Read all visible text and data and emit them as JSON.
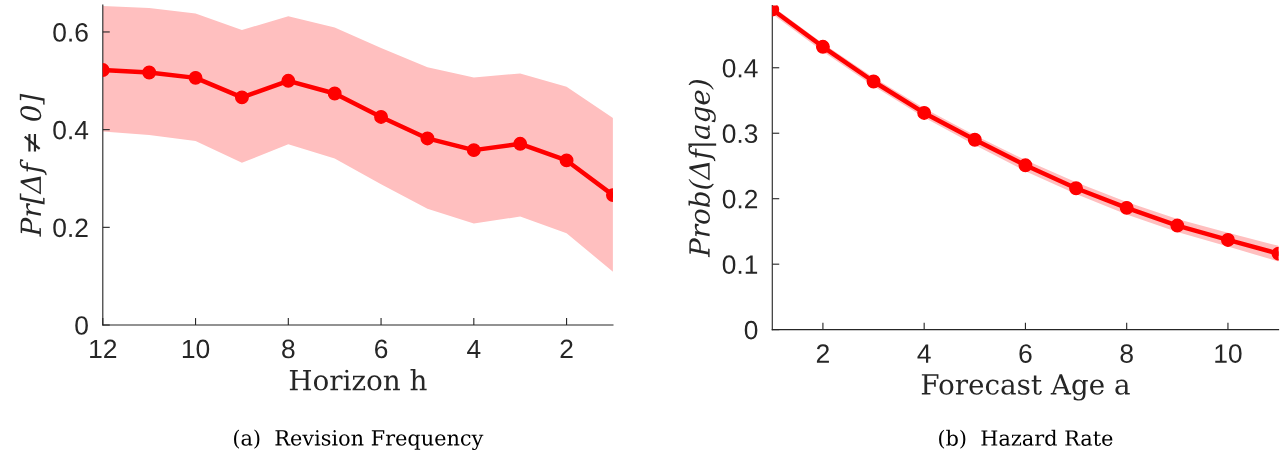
{
  "chart_data": [
    {
      "type": "line",
      "xlabel": "Horizon h",
      "ylabel": "Pr[Δf ≠ 0]",
      "annotations": [
        "(a)  Revision Frequency"
      ],
      "x": [
        12,
        11,
        10,
        9,
        8,
        7,
        6,
        5,
        4,
        3,
        2,
        1
      ],
      "series": [
        {
          "color": "#ff0000",
          "values": [
            0.522,
            0.517,
            0.506,
            0.466,
            0.5,
            0.474,
            0.426,
            0.382,
            0.358,
            0.371,
            0.337,
            0.266
          ],
          "upper": [
            0.653,
            0.649,
            0.638,
            0.604,
            0.632,
            0.609,
            0.567,
            0.528,
            0.507,
            0.515,
            0.488,
            0.424
          ],
          "lower": [
            0.396,
            0.389,
            0.377,
            0.332,
            0.37,
            0.341,
            0.288,
            0.238,
            0.208,
            0.222,
            0.188,
            0.109
          ]
        }
      ],
      "xlim": [
        12,
        1
      ],
      "xticks": [
        12,
        10,
        8,
        6,
        4,
        2
      ],
      "ylim": [
        0,
        0.655
      ],
      "yticks": [
        0,
        0.2,
        0.4,
        0.6
      ],
      "marker": "circle",
      "line_style": "solid",
      "grid": false,
      "legend": false
    },
    {
      "type": "line",
      "xlabel": "Forecast Age a",
      "ylabel": "Prob(Δf|age)",
      "annotations": [
        "(b)  Hazard Rate"
      ],
      "x": [
        1,
        2,
        3,
        4,
        5,
        6,
        7,
        8,
        9,
        10,
        11
      ],
      "series": [
        {
          "color": "#ff0000",
          "values": [
            0.489,
            0.432,
            0.379,
            0.331,
            0.29,
            0.251,
            0.216,
            0.186,
            0.159,
            0.137,
            0.116
          ],
          "upper": [
            0.494,
            0.437,
            0.385,
            0.338,
            0.297,
            0.259,
            0.225,
            0.195,
            0.169,
            0.148,
            0.128
          ],
          "lower": [
            0.482,
            0.425,
            0.372,
            0.324,
            0.282,
            0.242,
            0.207,
            0.176,
            0.149,
            0.127,
            0.104
          ]
        }
      ],
      "xlim": [
        1,
        11
      ],
      "xticks": [
        2,
        4,
        6,
        8,
        10
      ],
      "ylim": [
        0,
        0.495
      ],
      "yticks": [
        0,
        0.1,
        0.2,
        0.3,
        0.4
      ],
      "marker": "circle",
      "line_style": "solid",
      "grid": false,
      "legend": false
    }
  ]
}
